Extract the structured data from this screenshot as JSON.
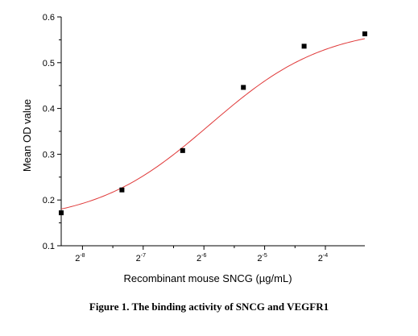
{
  "caption": "Figure 1. The binding activity of SNCG and VEGFR1",
  "chart_data": {
    "type": "scatter",
    "xlabel": "Recombinant mouse SNCG (µg/mL)",
    "ylabel": "Mean OD value",
    "x_scale": "log2",
    "x_tick_exponents": [
      -8,
      -7,
      -6,
      -5,
      -4
    ],
    "xlim_exponent": [
      -8.35,
      -3.35
    ],
    "ylim": [
      0.1,
      0.6
    ],
    "y_ticks": [
      "0.1",
      "0.2",
      "0.3",
      "0.4",
      "0.5",
      "0.6"
    ],
    "series": [
      {
        "points": [
          {
            "x_exponent": -8.35,
            "y": 0.172
          },
          {
            "x_exponent": -7.35,
            "y": 0.222
          },
          {
            "x_exponent": -6.35,
            "y": 0.308
          },
          {
            "x_exponent": -5.35,
            "y": 0.446
          },
          {
            "x_exponent": -4.35,
            "y": 0.536
          },
          {
            "x_exponent": -3.35,
            "y": 0.563
          }
        ],
        "marker_color": "#000000"
      }
    ],
    "fit_curve": {
      "model": "4PL",
      "bottom": 0.15,
      "top": 0.58,
      "inflection_exponent": -5.9,
      "slope": 0.95,
      "color": "#e03a3a"
    },
    "grid": false,
    "legend": "none"
  }
}
